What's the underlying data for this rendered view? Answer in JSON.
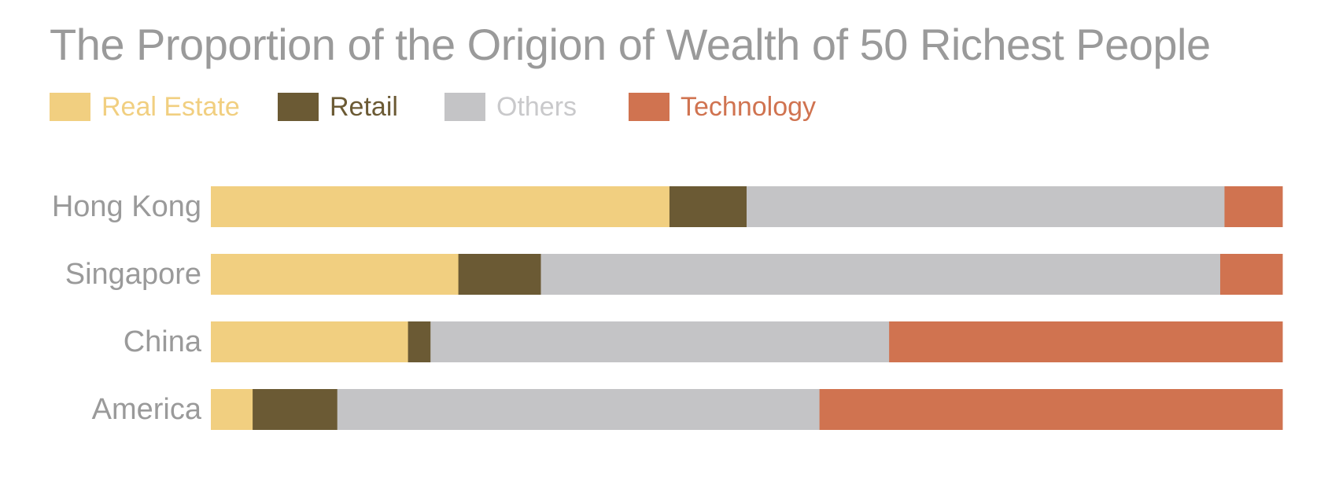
{
  "chart_data": {
    "type": "bar",
    "orientation": "horizontal",
    "stacked": true,
    "normalized": true,
    "title": "The Proportion of the Origion of Wealth of 50 Richest People",
    "xlabel": "",
    "ylabel": "",
    "legend_position": "top-left",
    "grid": false,
    "xlim": [
      0,
      100
    ],
    "categories": [
      "Hong Kong",
      "Singapore",
      "China",
      "America"
    ],
    "series": [
      {
        "name": "Real Estate",
        "color": "#f1cf80",
        "values": [
          42.8,
          23.1,
          18.4,
          3.9
        ]
      },
      {
        "name": "Retail",
        "color": "#6b5a34",
        "values": [
          7.2,
          7.7,
          2.1,
          7.9
        ]
      },
      {
        "name": "Others",
        "color": "#c4c4c6",
        "values": [
          44.6,
          63.4,
          42.8,
          45.0
        ]
      },
      {
        "name": "Technology",
        "color": "#d07350",
        "values": [
          5.4,
          5.8,
          36.7,
          43.2
        ]
      }
    ]
  }
}
